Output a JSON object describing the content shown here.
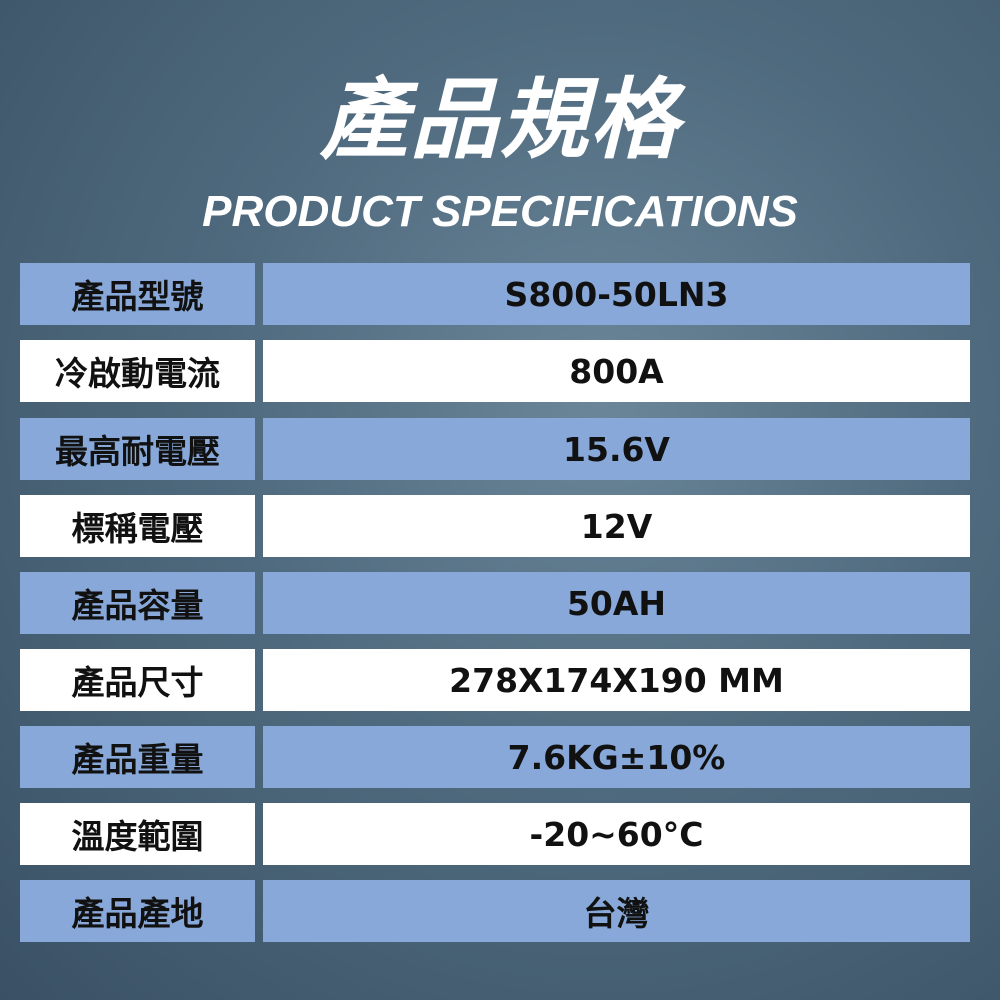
{
  "header": {
    "title": "產品規格",
    "subtitle": "PRODUCT SPECIFICATIONS"
  },
  "colors": {
    "row_blue": "#87a8d8",
    "row_white": "#ffffff",
    "background": "#4f6a7e"
  },
  "specs": [
    {
      "label": "產品型號",
      "value": "S800-50LN3"
    },
    {
      "label": "冷啟動電流",
      "value": "800A"
    },
    {
      "label": "最高耐電壓",
      "value": "15.6V"
    },
    {
      "label": "標稱電壓",
      "value": "12V"
    },
    {
      "label": "產品容量",
      "value": "50AH"
    },
    {
      "label": "產品尺寸",
      "value": "278X174X190 MM"
    },
    {
      "label": "產品重量",
      "value": "7.6KG±10%"
    },
    {
      "label": "溫度範圍",
      "value": "-20~60°C"
    },
    {
      "label": "產品產地",
      "value": "台灣"
    }
  ]
}
